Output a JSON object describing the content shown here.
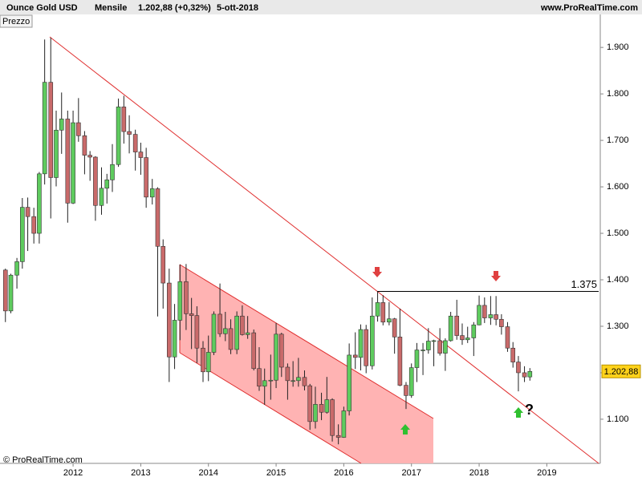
{
  "chart_data": {
    "type": "candlestick",
    "title": "Ounce Gold USD",
    "period": "Mensile",
    "last_change": "1.202,88 (+0,32%)",
    "date": "5-ott-2018",
    "site": "www.ProRealTime.com",
    "panel_label": "Prezzo",
    "copyright": "© ProRealTime.com",
    "annotations": [
      "?"
    ],
    "up_color": "#5ecb5e",
    "down_color": "#c96a6a",
    "x": [
      2011.0,
      2011.08,
      2011.17,
      2011.25,
      2011.33,
      2011.42,
      2011.5,
      2011.58,
      2011.67,
      2011.75,
      2011.83,
      2011.92,
      2012.0,
      2012.08,
      2012.17,
      2012.25,
      2012.33,
      2012.42,
      2012.5,
      2012.58,
      2012.67,
      2012.75,
      2012.83,
      2012.92,
      2013.0,
      2013.08,
      2013.17,
      2013.25,
      2013.33,
      2013.42,
      2013.5,
      2013.58,
      2013.67,
      2013.75,
      2013.83,
      2013.92,
      2014.0,
      2014.08,
      2014.17,
      2014.25,
      2014.33,
      2014.42,
      2014.5,
      2014.58,
      2014.67,
      2014.75,
      2014.83,
      2014.92,
      2015.0,
      2015.08,
      2015.17,
      2015.25,
      2015.33,
      2015.42,
      2015.5,
      2015.58,
      2015.67,
      2015.75,
      2015.83,
      2015.92,
      2016.0,
      2016.08,
      2016.17,
      2016.25,
      2016.33,
      2016.42,
      2016.5,
      2016.58,
      2016.67,
      2016.75,
      2016.83,
      2016.92,
      2017.0,
      2017.08,
      2017.17,
      2017.25,
      2017.33,
      2017.42,
      2017.5,
      2017.58,
      2017.67,
      2017.75,
      2017.83,
      2017.92,
      2018.0,
      2018.08,
      2018.17,
      2018.25,
      2018.33,
      2018.42,
      2018.5,
      2018.58,
      2018.67,
      2018.75
    ],
    "open": [
      1421,
      1333,
      1410,
      1439,
      1556,
      1536,
      1500,
      1628,
      1825,
      1620,
      1722,
      1746,
      1565,
      1738,
      1710,
      1668,
      1664,
      1560,
      1597,
      1615,
      1648,
      1772,
      1719,
      1713,
      1675,
      1663,
      1578,
      1596,
      1472,
      1393,
      1234,
      1313,
      1396,
      1327,
      1323,
      1253,
      1202,
      1244,
      1326,
      1284,
      1295,
      1250,
      1322,
      1282,
      1286,
      1209,
      1171,
      1183,
      1184,
      1283,
      1212,
      1183,
      1183,
      1190,
      1172,
      1095,
      1132,
      1115,
      1142,
      1065,
      1061,
      1118,
      1238,
      1233,
      1293,
      1215,
      1322,
      1351,
      1309,
      1316,
      1277,
      1173,
      1151,
      1211,
      1249,
      1249,
      1268,
      1269,
      1242,
      1269,
      1322,
      1280,
      1271,
      1275,
      1303,
      1345,
      1318,
      1325,
      1315,
      1299,
      1253,
      1223,
      1200,
      1191
    ],
    "high": [
      1424,
      1413,
      1447,
      1576,
      1577,
      1555,
      1632,
      1917,
      1921,
      1764,
      1803,
      1764,
      1764,
      1791,
      1720,
      1677,
      1666,
      1642,
      1628,
      1692,
      1790,
      1796,
      1754,
      1723,
      1695,
      1684,
      1617,
      1599,
      1487,
      1424,
      1348,
      1433,
      1434,
      1361,
      1343,
      1268,
      1280,
      1332,
      1392,
      1331,
      1315,
      1332,
      1345,
      1322,
      1293,
      1255,
      1209,
      1239,
      1307,
      1286,
      1220,
      1225,
      1232,
      1205,
      1176,
      1170,
      1157,
      1191,
      1145,
      1089,
      1127,
      1263,
      1287,
      1304,
      1303,
      1362,
      1375,
      1367,
      1352,
      1318,
      1338,
      1180,
      1220,
      1264,
      1264,
      1296,
      1271,
      1296,
      1274,
      1331,
      1357,
      1306,
      1299,
      1309,
      1366,
      1362,
      1365,
      1365,
      1326,
      1309,
      1266,
      1236,
      1214,
      1210
    ],
    "low": [
      1309,
      1328,
      1381,
      1424,
      1462,
      1478,
      1478,
      1605,
      1532,
      1601,
      1671,
      1523,
      1563,
      1697,
      1627,
      1613,
      1527,
      1540,
      1564,
      1589,
      1643,
      1693,
      1672,
      1635,
      1626,
      1555,
      1562,
      1321,
      1338,
      1180,
      1208,
      1270,
      1292,
      1251,
      1221,
      1180,
      1182,
      1238,
      1277,
      1268,
      1240,
      1240,
      1280,
      1273,
      1205,
      1161,
      1131,
      1142,
      1167,
      1191,
      1142,
      1170,
      1170,
      1162,
      1077,
      1080,
      1098,
      1112,
      1052,
      1046,
      1060,
      1108,
      1208,
      1205,
      1199,
      1207,
      1310,
      1302,
      1302,
      1241,
      1171,
      1122,
      1146,
      1180,
      1195,
      1241,
      1214,
      1237,
      1204,
      1267,
      1271,
      1260,
      1264,
      1236,
      1302,
      1307,
      1303,
      1302,
      1282,
      1245,
      1211,
      1160,
      1180,
      1183
    ],
    "close": [
      1333,
      1410,
      1439,
      1556,
      1536,
      1500,
      1628,
      1825,
      1620,
      1722,
      1746,
      1565,
      1738,
      1710,
      1668,
      1664,
      1560,
      1597,
      1615,
      1648,
      1772,
      1719,
      1713,
      1675,
      1663,
      1578,
      1596,
      1472,
      1393,
      1234,
      1313,
      1396,
      1327,
      1323,
      1253,
      1202,
      1244,
      1326,
      1284,
      1295,
      1250,
      1322,
      1282,
      1286,
      1209,
      1171,
      1183,
      1184,
      1283,
      1212,
      1183,
      1183,
      1190,
      1172,
      1095,
      1132,
      1115,
      1142,
      1065,
      1061,
      1118,
      1238,
      1233,
      1293,
      1215,
      1322,
      1351,
      1309,
      1316,
      1277,
      1173,
      1151,
      1211,
      1249,
      1249,
      1268,
      1269,
      1242,
      1269,
      1322,
      1280,
      1271,
      1275,
      1303,
      1345,
      1318,
      1325,
      1315,
      1299,
      1253,
      1223,
      1200,
      1191,
      1202.88
    ],
    "last_price": {
      "value": 1202.88,
      "label": "1.202,88"
    },
    "levels": [
      {
        "value": 1375,
        "label": "1.375"
      }
    ],
    "xlim": [
      2010.92,
      2019.79
    ],
    "xticks": [
      2012,
      2013,
      2014,
      2015,
      2016,
      2017,
      2018,
      2019
    ],
    "ylim": [
      1005,
      1971
    ],
    "yticks": [
      {
        "value": 1100,
        "label": "1.100"
      },
      {
        "value": 1200,
        "label": "1.200"
      },
      {
        "value": 1300,
        "label": "1.300"
      },
      {
        "value": 1400,
        "label": "1.400"
      },
      {
        "value": 1500,
        "label": "1.500"
      },
      {
        "value": 1600,
        "label": "1.600"
      },
      {
        "value": 1700,
        "label": "1.700"
      },
      {
        "value": 1800,
        "label": "1.800"
      },
      {
        "value": 1900,
        "label": "1.900"
      }
    ]
  }
}
